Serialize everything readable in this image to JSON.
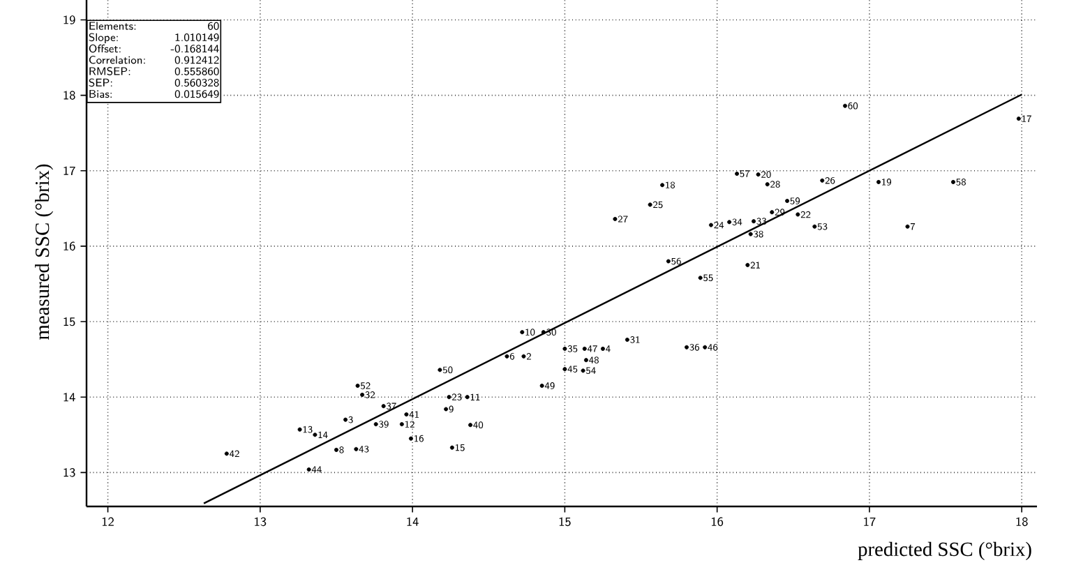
{
  "chart_data": {
    "type": "scatter",
    "xlabel": "predicted SSC (°brix)",
    "ylabel": "measured SSC (°brix)",
    "xlim": [
      11.86,
      18.1
    ],
    "ylim": [
      12.55,
      19.3
    ],
    "xticks": [
      12,
      13,
      14,
      15,
      16,
      17,
      18
    ],
    "yticks": [
      13,
      14,
      15,
      16,
      17,
      18,
      19
    ],
    "grid": true,
    "annotations": [
      "Elements:",
      "60",
      "Slope:",
      "1.010149",
      "Offset:",
      "-0.168144",
      "Correlation:",
      "0.912412",
      "RMSEP:",
      "0.555860",
      "SEP:",
      "0.560328",
      "Bias:",
      "0.015649",
      {
        "text": "17",
        "x": 17.98,
        "y": 17.69
      },
      {
        "text": "60",
        "x": 16.84,
        "y": 17.86
      },
      {
        "text": "18",
        "x": 15.64,
        "y": 16.81
      },
      {
        "text": "57",
        "x": 16.13,
        "y": 16.96
      },
      {
        "text": "20",
        "x": 16.27,
        "y": 16.95
      },
      {
        "text": "28",
        "x": 16.33,
        "y": 16.82
      },
      {
        "text": "26",
        "x": 16.69,
        "y": 16.87
      },
      {
        "text": "19",
        "x": 17.06,
        "y": 16.85
      },
      {
        "text": "58",
        "x": 17.55,
        "y": 16.85
      },
      {
        "text": "25",
        "x": 15.56,
        "y": 16.55
      },
      {
        "text": "27",
        "x": 15.33,
        "y": 16.36
      },
      {
        "text": "59",
        "x": 16.46,
        "y": 16.6
      },
      {
        "text": "29",
        "x": 16.36,
        "y": 16.45
      },
      {
        "text": "22",
        "x": 16.53,
        "y": 16.42
      },
      {
        "text": "53",
        "x": 16.64,
        "y": 16.26
      },
      {
        "text": "7",
        "x": 17.25,
        "y": 16.26
      },
      {
        "text": "24",
        "x": 15.96,
        "y": 16.28
      },
      {
        "text": "34",
        "x": 16.08,
        "y": 16.32
      },
      {
        "text": "33",
        "x": 16.24,
        "y": 16.33
      },
      {
        "text": "38",
        "x": 16.22,
        "y": 16.16
      },
      {
        "text": "56",
        "x": 15.68,
        "y": 15.8
      },
      {
        "text": "55",
        "x": 15.89,
        "y": 15.58
      },
      {
        "text": "21",
        "x": 16.2,
        "y": 15.75
      },
      {
        "text": "31",
        "x": 15.41,
        "y": 14.76
      },
      {
        "text": "36",
        "x": 15.8,
        "y": 14.66
      },
      {
        "text": "46",
        "x": 15.92,
        "y": 14.66
      },
      {
        "text": "4",
        "x": 15.25,
        "y": 14.64
      },
      {
        "text": "35",
        "x": 15.0,
        "y": 14.64
      },
      {
        "text": "47",
        "x": 15.13,
        "y": 14.64
      },
      {
        "text": "48",
        "x": 15.14,
        "y": 14.49
      },
      {
        "text": "45",
        "x": 15.0,
        "y": 14.37
      },
      {
        "text": "54",
        "x": 15.12,
        "y": 14.35
      },
      {
        "text": "30",
        "x": 14.86,
        "y": 14.86
      },
      {
        "text": "10",
        "x": 14.72,
        "y": 14.86
      },
      {
        "text": "2",
        "x": 14.73,
        "y": 14.54
      },
      {
        "text": "6",
        "x": 14.62,
        "y": 14.54
      },
      {
        "text": "49",
        "x": 14.85,
        "y": 14.15
      },
      {
        "text": "50",
        "x": 14.18,
        "y": 14.36
      },
      {
        "text": "23",
        "x": 14.24,
        "y": 14.0
      },
      {
        "text": "11",
        "x": 14.36,
        "y": 14.0
      },
      {
        "text": "9",
        "x": 14.22,
        "y": 13.84
      },
      {
        "text": "40",
        "x": 14.38,
        "y": 13.63
      },
      {
        "text": "15",
        "x": 14.26,
        "y": 13.33
      },
      {
        "text": "52",
        "x": 13.64,
        "y": 14.15
      },
      {
        "text": "32",
        "x": 13.67,
        "y": 14.03
      },
      {
        "text": "37",
        "x": 13.81,
        "y": 13.88
      },
      {
        "text": "41",
        "x": 13.96,
        "y": 13.77
      },
      {
        "text": "12",
        "x": 13.93,
        "y": 13.64
      },
      {
        "text": "16",
        "x": 13.99,
        "y": 13.45
      },
      {
        "text": "39",
        "x": 13.76,
        "y": 13.64
      },
      {
        "text": "3",
        "x": 13.56,
        "y": 13.7
      },
      {
        "text": "43",
        "x": 13.63,
        "y": 13.31
      },
      {
        "text": "13",
        "x": 13.26,
        "y": 13.57
      },
      {
        "text": "14",
        "x": 13.36,
        "y": 13.5
      },
      {
        "text": "8",
        "x": 13.5,
        "y": 13.3
      },
      {
        "text": "44",
        "x": 13.32,
        "y": 13.04
      },
      {
        "text": "42",
        "x": 12.78,
        "y": 13.25
      }
    ],
    "series": [
      {
        "color": "#000000",
        "x": [
          17.98,
          16.84,
          15.64,
          16.13,
          16.27,
          16.33,
          16.69,
          17.06,
          17.55,
          15.56,
          15.33,
          16.46,
          16.36,
          16.53,
          16.64,
          17.25,
          15.96,
          16.08,
          16.24,
          16.22,
          15.68,
          15.89,
          16.2,
          15.41,
          15.8,
          15.92,
          15.25,
          15.0,
          15.13,
          15.14,
          15.0,
          15.12,
          14.86,
          14.72,
          14.73,
          14.62,
          14.85,
          14.18,
          14.24,
          14.36,
          14.22,
          14.38,
          14.26,
          13.64,
          13.67,
          13.81,
          13.96,
          13.93,
          13.99,
          13.76,
          13.56,
          13.63,
          13.26,
          13.36,
          13.5,
          13.32,
          12.78
        ],
        "values": [
          17.69,
          17.86,
          16.81,
          16.96,
          16.95,
          16.82,
          16.87,
          16.85,
          16.85,
          16.55,
          16.36,
          16.6,
          16.45,
          16.42,
          16.26,
          16.26,
          16.28,
          16.32,
          16.33,
          16.16,
          15.8,
          15.58,
          15.75,
          14.76,
          14.66,
          14.66,
          14.64,
          14.64,
          14.64,
          14.49,
          14.37,
          14.35,
          14.86,
          14.86,
          14.54,
          14.54,
          14.15,
          14.36,
          14.0,
          14.0,
          13.84,
          13.63,
          13.33,
          14.15,
          14.03,
          13.88,
          13.77,
          13.64,
          13.45,
          13.64,
          13.7,
          13.31,
          13.57,
          13.5,
          13.3,
          13.04,
          13.25
        ]
      },
      {
        "type": "line",
        "color": "#000000",
        "line_style": "solid",
        "x": [
          12.63,
          18.0
        ],
        "values": [
          12.59,
          18.01
        ]
      }
    ]
  }
}
